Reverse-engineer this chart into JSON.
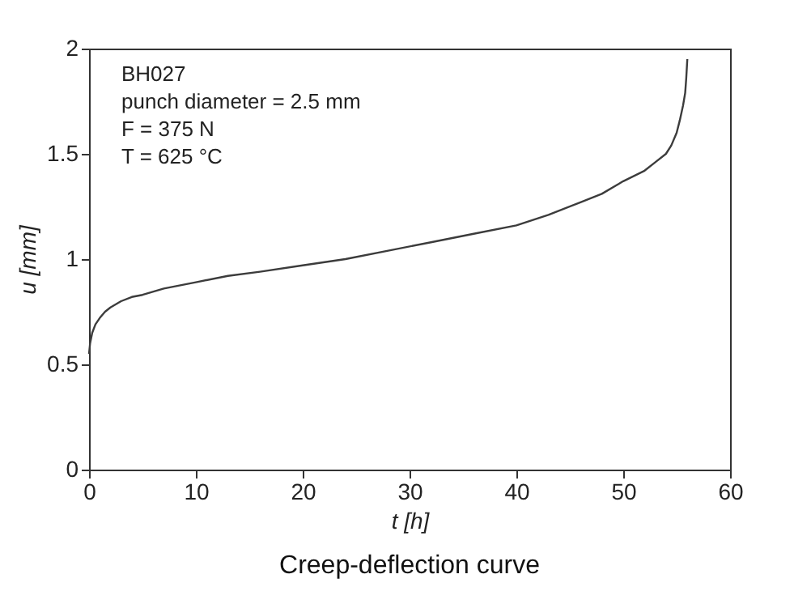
{
  "chart_data": {
    "type": "line",
    "xlabel": "t  [h]",
    "ylabel": "u  [mm]",
    "x": [
      0,
      0.1,
      0.3,
      0.6,
      1,
      1.5,
      2,
      3,
      4,
      5,
      7,
      10,
      13,
      16,
      20,
      24,
      28,
      32,
      36,
      40,
      43,
      46,
      48,
      50,
      52,
      53,
      54,
      54.5,
      55,
      55.3,
      55.6,
      55.8,
      55.9,
      56
    ],
    "series": [
      {
        "color": "#3c3c3c",
        "values": [
          0.55,
          0.6,
          0.65,
          0.69,
          0.72,
          0.75,
          0.77,
          0.8,
          0.82,
          0.83,
          0.86,
          0.89,
          0.92,
          0.94,
          0.97,
          1.0,
          1.04,
          1.08,
          1.12,
          1.16,
          1.21,
          1.27,
          1.31,
          1.37,
          1.42,
          1.46,
          1.5,
          1.54,
          1.6,
          1.66,
          1.73,
          1.79,
          1.86,
          1.95
        ]
      }
    ],
    "xlim": [
      0,
      60
    ],
    "ylim": [
      0,
      2
    ],
    "xticks": [
      0,
      10,
      20,
      30,
      40,
      50,
      60
    ],
    "yticks": [
      0,
      0.5,
      1,
      1.5,
      2
    ],
    "grid": false,
    "legend": false,
    "annotations": [
      "BH027",
      "punch diameter = 2.5 mm",
      "F = 375 N",
      "T = 625 °C",
      "Creep-deflection curve"
    ]
  }
}
